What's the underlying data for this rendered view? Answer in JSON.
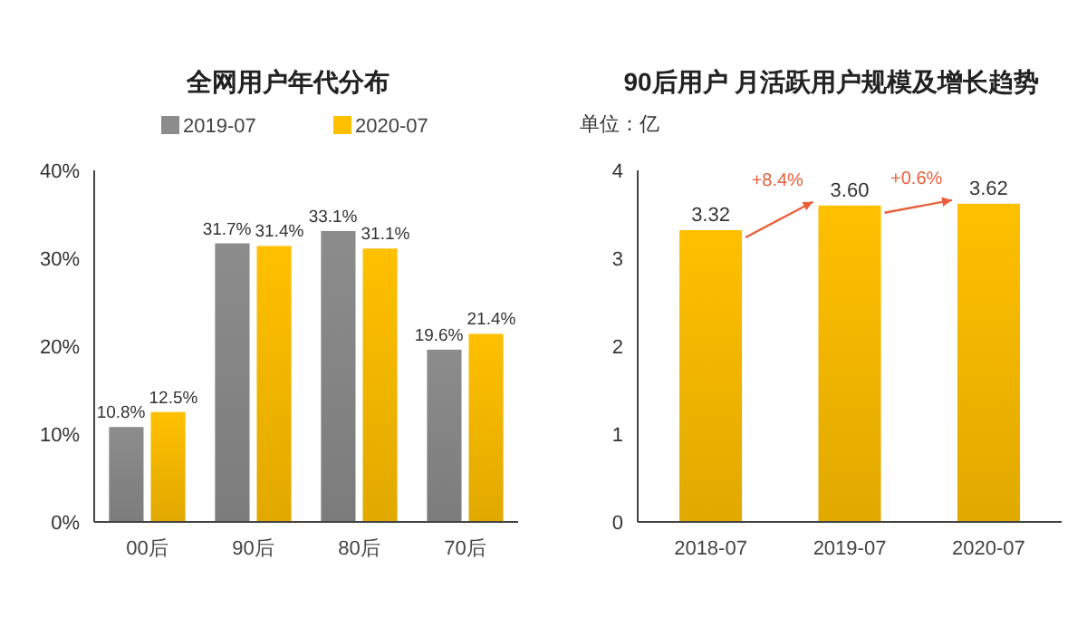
{
  "chart_data": [
    {
      "type": "bar",
      "title": "全网用户年代分布",
      "categories": [
        "00后",
        "90后",
        "80后",
        "70后"
      ],
      "series": [
        {
          "name": "2019-07",
          "color": "#8c8c8c",
          "values": [
            10.8,
            31.7,
            33.1,
            19.6
          ],
          "value_labels": [
            "10.8%",
            "31.7%",
            "33.1%",
            "19.6%"
          ]
        },
        {
          "name": "2020-07",
          "color": "#ffc000",
          "values": [
            12.5,
            31.4,
            31.1,
            21.4
          ],
          "value_labels": [
            "12.5%",
            "31.4%",
            "31.1%",
            "21.4%"
          ]
        }
      ],
      "ylim": [
        0,
        40
      ],
      "yticks": [
        {
          "value": 0,
          "label": "0%"
        },
        {
          "value": 10,
          "label": "10%"
        },
        {
          "value": 20,
          "label": "20%"
        },
        {
          "value": 30,
          "label": "30%"
        },
        {
          "value": 40,
          "label": "40%"
        }
      ],
      "legend": "top",
      "grid": false
    },
    {
      "type": "bar",
      "title": "90后用户 月活跃用户规模及增长趋势",
      "ylabel": "单位：亿",
      "categories": [
        "2018-07",
        "2019-07",
        "2020-07"
      ],
      "series": [
        {
          "color": "#ffc000",
          "values": [
            3.32,
            3.6,
            3.62
          ],
          "value_labels": [
            "3.32",
            "3.60",
            "3.62"
          ]
        }
      ],
      "ylim": [
        0,
        4
      ],
      "yticks": [
        0,
        1,
        2,
        3,
        4
      ],
      "annotations": [
        "+8.4%",
        "+0.6%"
      ],
      "grid": false
    }
  ]
}
